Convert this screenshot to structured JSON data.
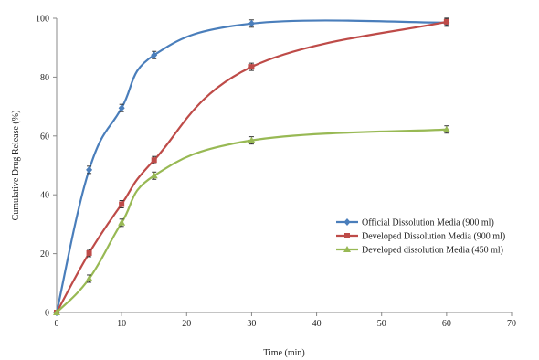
{
  "chart_data": {
    "type": "line",
    "title": "",
    "xlabel": "Time (min)",
    "ylabel": "Cumulative Drug Release (%)",
    "xlim": [
      0,
      70
    ],
    "ylim": [
      0,
      100
    ],
    "xticks": [
      0,
      10,
      20,
      30,
      40,
      50,
      60,
      70
    ],
    "yticks": [
      0,
      20,
      40,
      60,
      80,
      100
    ],
    "x": [
      0,
      5,
      10,
      15,
      30,
      60
    ],
    "grid": false,
    "legend_position": "right",
    "series": [
      {
        "name": "Official Dissolution Media (900 ml)",
        "color": "#4a7ebb",
        "marker": "diamond",
        "values": [
          0,
          48.5,
          69.5,
          87.5,
          98.2,
          98.5
        ]
      },
      {
        "name": "Developed Dissolution Media (900 ml)",
        "color": "#be4b48",
        "marker": "square",
        "values": [
          0,
          20.2,
          36.8,
          51.8,
          83.5,
          98.8
        ]
      },
      {
        "name": "Developed dissolution Media (450 ml)",
        "color": "#98b954",
        "marker": "triangle",
        "values": [
          0,
          11.5,
          30.5,
          46.5,
          58.5,
          62.2
        ]
      }
    ]
  }
}
